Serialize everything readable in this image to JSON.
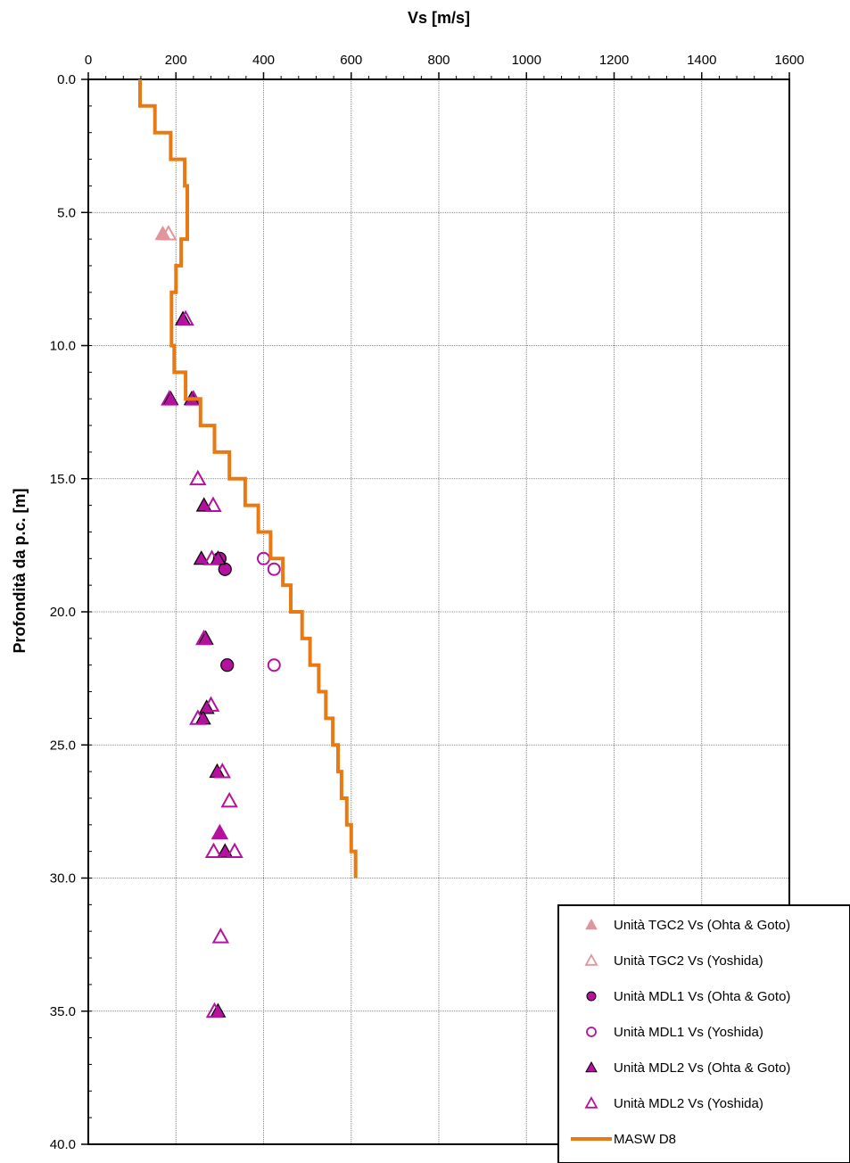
{
  "chart_data": {
    "type": "scatter",
    "xlabel": "Vs [m/s]",
    "ylabel": "Profondità da p.c. [m]",
    "xlim": [
      0,
      1600
    ],
    "ylim": [
      0,
      40
    ],
    "y_inverted": true,
    "x_axis_position": "top",
    "x_ticks": [
      0,
      200,
      400,
      600,
      800,
      1000,
      1200,
      1400,
      1600
    ],
    "x_tick_labels": [
      "0",
      "200",
      "400",
      "600",
      "800",
      "1000",
      "1200",
      "1400",
      "1600"
    ],
    "y_ticks": [
      0,
      5,
      10,
      15,
      20,
      25,
      30,
      35,
      40
    ],
    "y_tick_labels": [
      "0.0",
      "5.0",
      "10.0",
      "15.0",
      "20.0",
      "25.0",
      "30.0",
      "35.0",
      "40.0"
    ],
    "grid": true,
    "legend_position": "bottom-right",
    "series": [
      {
        "name": "Unità  TGC2 Vs (Ohta & Goto)",
        "marker": "triangle-filled",
        "color": "#E0959A",
        "points": [
          [
            170,
            5.8
          ]
        ]
      },
      {
        "name": "Unità  TGC2 Vs (Yoshida)",
        "marker": "triangle-open",
        "color": "#E0959A",
        "points": [
          [
            183,
            5.8
          ]
        ]
      },
      {
        "name": "Unità  MDL1 Vs (Ohta & Goto)",
        "marker": "circle-filled",
        "color": "#B5119E",
        "points": [
          [
            300,
            18.0
          ],
          [
            312,
            18.4
          ],
          [
            317,
            22.0
          ]
        ]
      },
      {
        "name": "Unità  MDL1 Vs (Yoshida)",
        "marker": "circle-open",
        "color": "#B5119E",
        "points": [
          [
            400,
            18.0
          ],
          [
            424,
            18.4
          ],
          [
            424,
            22.0
          ]
        ]
      },
      {
        "name": "Unità  MDL2 Vs (Ohta & Goto)",
        "marker": "triangle-filled",
        "color": "#B5119E",
        "points": [
          [
            216,
            9.0
          ],
          [
            188,
            12.0
          ],
          [
            236,
            12.0
          ],
          [
            264,
            16.0
          ],
          [
            258,
            18.0
          ],
          [
            296,
            18.0
          ],
          [
            268,
            21.0
          ],
          [
            270,
            23.6
          ],
          [
            262,
            24.0
          ],
          [
            294,
            26.0
          ],
          [
            300,
            28.3
          ],
          [
            312,
            29.0
          ],
          [
            296,
            35.0
          ]
        ]
      },
      {
        "name": "Unità  MDL2 Vs (Yoshida)",
        "marker": "triangle-open",
        "color": "#B5119E",
        "points": [
          [
            222,
            9.0
          ],
          [
            185,
            12.0
          ],
          [
            240,
            12.0
          ],
          [
            250,
            15.0
          ],
          [
            285,
            16.0
          ],
          [
            282,
            18.0
          ],
          [
            264,
            21.0
          ],
          [
            280,
            23.5
          ],
          [
            250,
            24.0
          ],
          [
            306,
            26.0
          ],
          [
            322,
            27.1
          ],
          [
            300,
            28.3
          ],
          [
            286,
            29.0
          ],
          [
            334,
            29.0
          ],
          [
            302,
            32.2
          ],
          [
            288,
            35.0
          ]
        ]
      },
      {
        "name": "MASW D8",
        "marker": "step-line",
        "color": "#E97A13",
        "points": [
          [
            118,
            0
          ],
          [
            118,
            1
          ],
          [
            152,
            1
          ],
          [
            152,
            2
          ],
          [
            188,
            2
          ],
          [
            188,
            3
          ],
          [
            220,
            3
          ],
          [
            220,
            4
          ],
          [
            226,
            4
          ],
          [
            226,
            6
          ],
          [
            212,
            6
          ],
          [
            212,
            7
          ],
          [
            200,
            7
          ],
          [
            200,
            8
          ],
          [
            190,
            8
          ],
          [
            190,
            10
          ],
          [
            196,
            10
          ],
          [
            196,
            11
          ],
          [
            222,
            11
          ],
          [
            222,
            12
          ],
          [
            256,
            12
          ],
          [
            256,
            13
          ],
          [
            288,
            13
          ],
          [
            288,
            14
          ],
          [
            322,
            14
          ],
          [
            322,
            15
          ],
          [
            358,
            15
          ],
          [
            358,
            16
          ],
          [
            388,
            16
          ],
          [
            388,
            17
          ],
          [
            416,
            17
          ],
          [
            416,
            18
          ],
          [
            444,
            18
          ],
          [
            444,
            19
          ],
          [
            462,
            19
          ],
          [
            462,
            20
          ],
          [
            488,
            20
          ],
          [
            488,
            21
          ],
          [
            506,
            21
          ],
          [
            506,
            22
          ],
          [
            526,
            22
          ],
          [
            526,
            23
          ],
          [
            542,
            23
          ],
          [
            542,
            24
          ],
          [
            558,
            24
          ],
          [
            558,
            25
          ],
          [
            570,
            25
          ],
          [
            570,
            26
          ],
          [
            578,
            26
          ],
          [
            578,
            27
          ],
          [
            590,
            27
          ],
          [
            590,
            28
          ],
          [
            600,
            28
          ],
          [
            600,
            29
          ],
          [
            610,
            29
          ],
          [
            610,
            30
          ]
        ]
      }
    ]
  }
}
